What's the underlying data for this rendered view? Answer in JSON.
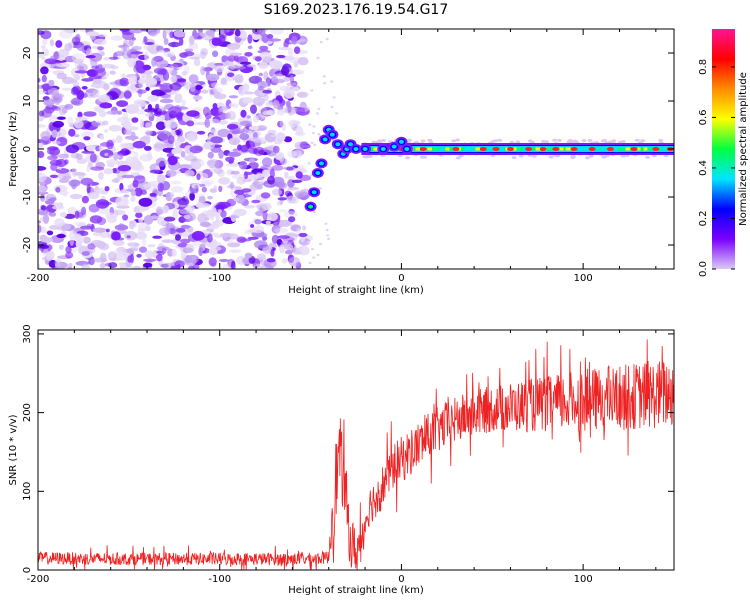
{
  "colors": {
    "snr_line": "#ee2222",
    "noise_purple": "#7a1cff",
    "frame": "#000000"
  },
  "colorbar_stops": [
    "#dcc9f5",
    "#7a00ff",
    "#0000ff",
    "#00e5ff",
    "#00ff40",
    "#ffff00",
    "#ff8c00",
    "#ff0000",
    "#ff1493"
  ],
  "chart_data": [
    {
      "type": "heatmap",
      "title": "S169.2023.176.19.54.G17",
      "xlabel": "Height of straight line (km)",
      "ylabel": "Frequency (Hz)",
      "xlim": [
        -200,
        150
      ],
      "ylim": [
        -25,
        25
      ],
      "xticks": [
        -200,
        -100,
        0,
        100
      ],
      "xtick_labels": [
        "-200",
        "-100",
        "0",
        "100"
      ],
      "yticks": [
        -20,
        -10,
        0,
        10,
        20
      ],
      "ytick_labels": [
        "-20",
        "-10",
        "0",
        "10",
        "20"
      ],
      "colorbar": {
        "label": "Normalized spectral amplitude",
        "range": [
          0,
          0.95
        ],
        "ticks": [
          0,
          0.2,
          0.4,
          0.6,
          0.8
        ],
        "tick_labels": [
          "0.0",
          "0.2",
          "0.4",
          "0.6",
          "0.8"
        ]
      },
      "features": {
        "noise_region_x": [
          -200,
          -52
        ],
        "signal_line_x": [
          -22,
          150
        ],
        "signal_freq": 0,
        "transition_points": [
          [
            -50,
            -12
          ],
          [
            -48,
            -9
          ],
          [
            -46,
            -5
          ],
          [
            -44,
            -3
          ],
          [
            -42,
            2
          ],
          [
            -40,
            4
          ],
          [
            -38,
            3
          ],
          [
            -35,
            1
          ],
          [
            -32,
            -1
          ],
          [
            -30,
            0
          ],
          [
            -28,
            1
          ],
          [
            -25,
            0
          ],
          [
            -20,
            0
          ],
          [
            -10,
            0
          ],
          [
            -4,
            0.5
          ],
          [
            0,
            1.5
          ],
          [
            3,
            0
          ]
        ],
        "strong_peaks_x": [
          -10,
          0,
          12,
          30,
          45,
          52,
          60,
          70,
          78,
          85,
          95,
          105,
          115,
          128,
          140,
          148
        ]
      }
    },
    {
      "type": "line",
      "xlabel": "Height of straight line (km)",
      "ylabel": "SNR (10 * v/v)",
      "xlim": [
        -200,
        150
      ],
      "ylim": [
        0,
        305
      ],
      "xticks": [
        -200,
        -100,
        0,
        100
      ],
      "xtick_labels": [
        "-200",
        "-100",
        "0",
        "100"
      ],
      "yticks": [
        0,
        100,
        200,
        300
      ],
      "ytick_labels": [
        "0",
        "100",
        "200",
        "300"
      ],
      "series": [
        {
          "trend": [
            [
              -200,
              15
            ],
            [
              -150,
              14
            ],
            [
              -100,
              14
            ],
            [
              -50,
              14
            ],
            [
              -40,
              16
            ],
            [
              -38,
              80
            ],
            [
              -34,
              150
            ],
            [
              -31,
              100
            ],
            [
              -28,
              35
            ],
            [
              -25,
              20
            ],
            [
              -22,
              40
            ],
            [
              -18,
              80
            ],
            [
              -12,
              100
            ],
            [
              -5,
              130
            ],
            [
              5,
              150
            ],
            [
              15,
              170
            ],
            [
              25,
              185
            ],
            [
              35,
              195
            ],
            [
              50,
              205
            ],
            [
              75,
              210
            ],
            [
              100,
              215
            ],
            [
              125,
              220
            ],
            [
              150,
              225
            ]
          ],
          "noise_amplitude": [
            [
              -200,
              8
            ],
            [
              -40,
              8
            ],
            [
              -38,
              60
            ],
            [
              -30,
              40
            ],
            [
              -20,
              25
            ],
            [
              0,
              30
            ],
            [
              50,
              30
            ],
            [
              100,
              40
            ],
            [
              150,
              45
            ]
          ],
          "samples": 1400,
          "seed": 17
        }
      ]
    }
  ]
}
